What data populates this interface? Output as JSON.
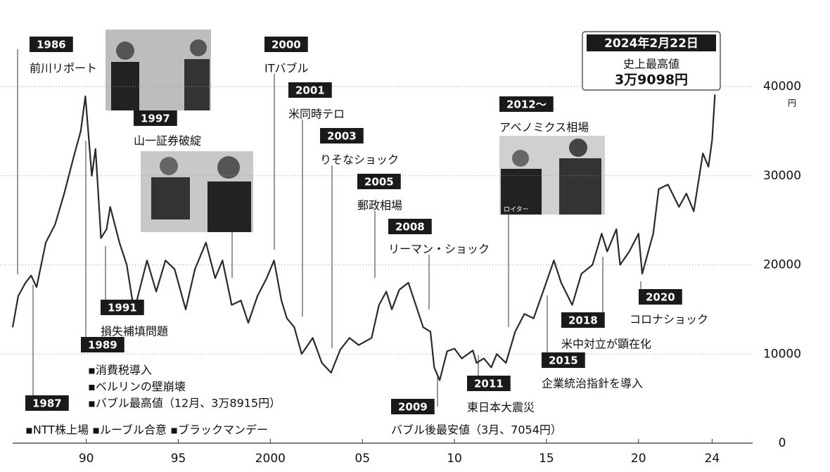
{
  "chart_data": {
    "type": "line",
    "color": "#2a2a2a",
    "x": [
      1986.0,
      1986.3,
      1986.7,
      1987.0,
      1987.3,
      1987.8,
      1988.3,
      1988.8,
      1989.3,
      1989.7,
      1989.95,
      1990.3,
      1990.5,
      1990.8,
      1991.1,
      1991.3,
      1991.8,
      1992.2,
      1992.6,
      1993.3,
      1993.8,
      1994.3,
      1994.8,
      1995.4,
      1995.9,
      1996.5,
      1997.0,
      1997.4,
      1997.9,
      1998.4,
      1998.8,
      1999.3,
      1999.8,
      2000.2,
      2000.6,
      2000.9,
      2001.3,
      2001.7,
      2002.3,
      2002.8,
      2003.3,
      2003.8,
      2004.3,
      2004.8,
      2005.5,
      2005.9,
      2006.3,
      2006.6,
      2007.0,
      2007.5,
      2007.9,
      2008.3,
      2008.7,
      2008.9,
      2009.2,
      2009.6,
      2010.0,
      2010.4,
      2011.0,
      2011.2,
      2011.6,
      2012.0,
      2012.3,
      2012.8,
      2013.3,
      2013.8,
      2014.3,
      2014.9,
      2015.4,
      2015.8,
      2016.4,
      2016.9,
      2017.5,
      2018.0,
      2018.3,
      2018.8,
      2019.0,
      2019.5,
      2020.0,
      2020.2,
      2020.8,
      2021.1,
      2021.6,
      2022.2,
      2022.6,
      2023.0,
      2023.5,
      2023.8,
      2024.0,
      2024.15
    ],
    "values": [
      13000,
      16500,
      18000,
      18800,
      17500,
      22500,
      24500,
      28000,
      32000,
      35000,
      38915,
      30000,
      33000,
      23000,
      24000,
      26500,
      22500,
      20000,
      14800,
      20500,
      17000,
      20500,
      19500,
      15000,
      19500,
      22500,
      18500,
      20500,
      15500,
      16000,
      13500,
      16500,
      18500,
      20500,
      16000,
      14000,
      13000,
      10000,
      11800,
      9000,
      7900,
      10500,
      11800,
      11000,
      11800,
      15500,
      17000,
      15000,
      17200,
      18000,
      15500,
      13000,
      12500,
      8500,
      7054,
      10300,
      10600,
      9500,
      10400,
      9000,
      9500,
      8500,
      10000,
      9000,
      12500,
      14500,
      14000,
      17500,
      20500,
      18000,
      15500,
      19000,
      20000,
      23500,
      21500,
      24000,
      20000,
      21500,
      23500,
      19000,
      23500,
      28500,
      29000,
      26500,
      28000,
      26000,
      32500,
      31000,
      34000,
      39098
    ],
    "xlim": [
      1986,
      2026.2
    ],
    "xticks": [
      {
        "value": 1990,
        "label": "90"
      },
      {
        "value": 1995,
        "label": "95"
      },
      2000,
      {
        "value": 2005,
        "label": "05"
      },
      {
        "value": 2010,
        "label": "10"
      },
      {
        "value": 2015,
        "label": "15"
      },
      {
        "value": 2020,
        "label": "20"
      },
      {
        "value": 2024,
        "label": "24"
      }
    ],
    "ylim": [
      0,
      40000
    ],
    "yticks": [
      0,
      10000,
      20000,
      30000,
      40000
    ],
    "y_unit": "円",
    "grid": true,
    "annotations": [
      {
        "label": "1986",
        "lines": [
          "前川リポート"
        ]
      },
      {
        "label": "1987",
        "lines": [
          "▪NTT株上場 ▪ルーブル合意 ▪ブラックマンデー"
        ]
      },
      {
        "label": "1989",
        "lines": [
          "▪消費税導入",
          "▪ベルリンの壁崩壊",
          "▪バブル最高値（12月、3万8915円）"
        ]
      },
      {
        "label": "1991",
        "lines": [
          "損失補填問題"
        ]
      },
      {
        "label": "1997",
        "lines": [
          "山一証券破綻"
        ]
      },
      {
        "label": "2000",
        "lines": [
          "ITバブル"
        ]
      },
      {
        "label": "2001",
        "lines": [
          "米同時テロ"
        ]
      },
      {
        "label": "2003",
        "lines": [
          "りそなショック"
        ]
      },
      {
        "label": "2005",
        "lines": [
          "郵政相場"
        ]
      },
      {
        "label": "2008",
        "lines": [
          "リーマン・ショック"
        ]
      },
      {
        "label": "2009",
        "lines": [
          "バブル後最安値（3月、7054円）"
        ]
      },
      {
        "label": "2011",
        "lines": [
          "東日本大震災"
        ]
      },
      {
        "label": "2012～",
        "lines": [
          "アベノミクス相場"
        ]
      },
      {
        "label": "2015",
        "lines": [
          "企業統治指針を導入"
        ]
      },
      {
        "label": "2018",
        "lines": [
          "米中対立が顕在化"
        ]
      },
      {
        "label": "2020",
        "lines": [
          "コロナショック"
        ]
      }
    ],
    "peak": {
      "label": "2024年2月22日",
      "lines": [
        "史上最高値",
        "3万9098円"
      ]
    },
    "photo_credit": "ロイター"
  }
}
